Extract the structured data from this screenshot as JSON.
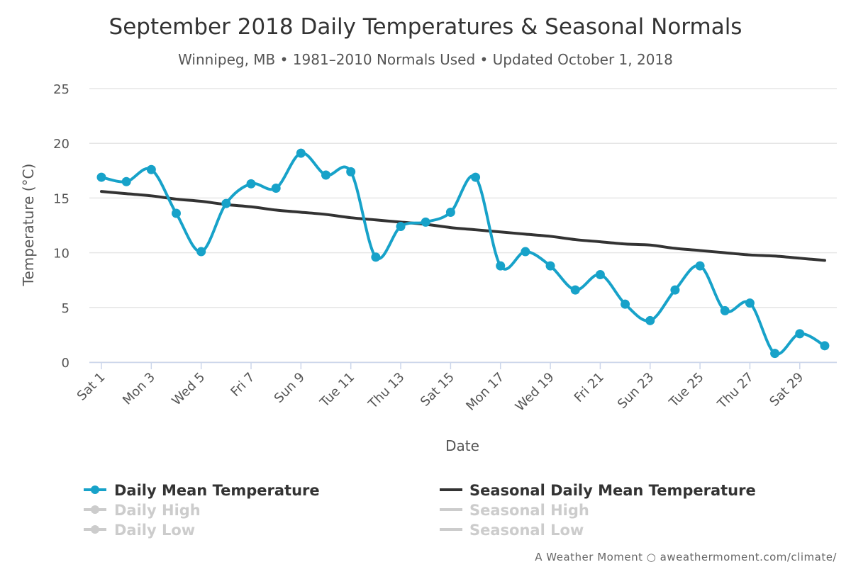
{
  "chart_data": {
    "type": "line",
    "title": "September 2018 Daily Temperatures & Seasonal Normals",
    "subtitle": "Winnipeg, MB • 1981–2010 Normals Used • Updated October 1, 2018",
    "xlabel": "Date",
    "ylabel": "Temperature (°C)",
    "ylim": [
      0,
      25
    ],
    "yticks": [
      0,
      5,
      10,
      15,
      20,
      25
    ],
    "grid": true,
    "legend_position": "bottom",
    "x": [
      1,
      2,
      3,
      4,
      5,
      6,
      7,
      8,
      9,
      10,
      11,
      12,
      13,
      14,
      15,
      16,
      17,
      18,
      19,
      20,
      21,
      22,
      23,
      24,
      25,
      26,
      27,
      28,
      29,
      30
    ],
    "xtick_labels": [
      {
        "x": 1,
        "label": "Sat 1"
      },
      {
        "x": 3,
        "label": "Mon 3"
      },
      {
        "x": 5,
        "label": "Wed 5"
      },
      {
        "x": 7,
        "label": "Fri 7"
      },
      {
        "x": 9,
        "label": "Sun 9"
      },
      {
        "x": 11,
        "label": "Tue 11"
      },
      {
        "x": 13,
        "label": "Thu 13"
      },
      {
        "x": 15,
        "label": "Sat 15"
      },
      {
        "x": 17,
        "label": "Mon 17"
      },
      {
        "x": 19,
        "label": "Wed 19"
      },
      {
        "x": 21,
        "label": "Fri 21"
      },
      {
        "x": 23,
        "label": "Sun 23"
      },
      {
        "x": 25,
        "label": "Tue 25"
      },
      {
        "x": 27,
        "label": "Thu 27"
      },
      {
        "x": 29,
        "label": "Sat 29"
      }
    ],
    "series": [
      {
        "name": "Daily Mean Temperature",
        "color": "#17a2c9",
        "markers": true,
        "visible": true,
        "values": [
          16.9,
          16.5,
          17.6,
          13.6,
          10.1,
          14.5,
          16.3,
          15.9,
          19.1,
          17.1,
          17.4,
          9.6,
          12.4,
          12.8,
          13.7,
          16.9,
          8.8,
          10.1,
          8.8,
          6.6,
          8.0,
          5.3,
          3.8,
          6.6,
          8.8,
          4.7,
          5.4,
          0.8,
          2.6,
          1.5
        ]
      },
      {
        "name": "Seasonal Daily Mean Temperature",
        "color": "#333333",
        "markers": false,
        "visible": true,
        "values": [
          15.6,
          15.4,
          15.2,
          14.9,
          14.7,
          14.4,
          14.2,
          13.9,
          13.7,
          13.5,
          13.2,
          13.0,
          12.8,
          12.6,
          12.3,
          12.1,
          11.9,
          11.7,
          11.5,
          11.2,
          11.0,
          10.8,
          10.7,
          10.4,
          10.2,
          10.0,
          9.8,
          9.7,
          9.5,
          9.3
        ]
      }
    ],
    "hidden_legend_items": [
      {
        "name": "Daily High",
        "marker": true
      },
      {
        "name": "Daily Low",
        "marker": true
      },
      {
        "name": "Seasonal High",
        "marker": false
      },
      {
        "name": "Seasonal Low",
        "marker": false
      }
    ],
    "hidden_color": "#cccccc",
    "credit": "A Weather Moment ○ aweathermoment.com/climate/"
  }
}
